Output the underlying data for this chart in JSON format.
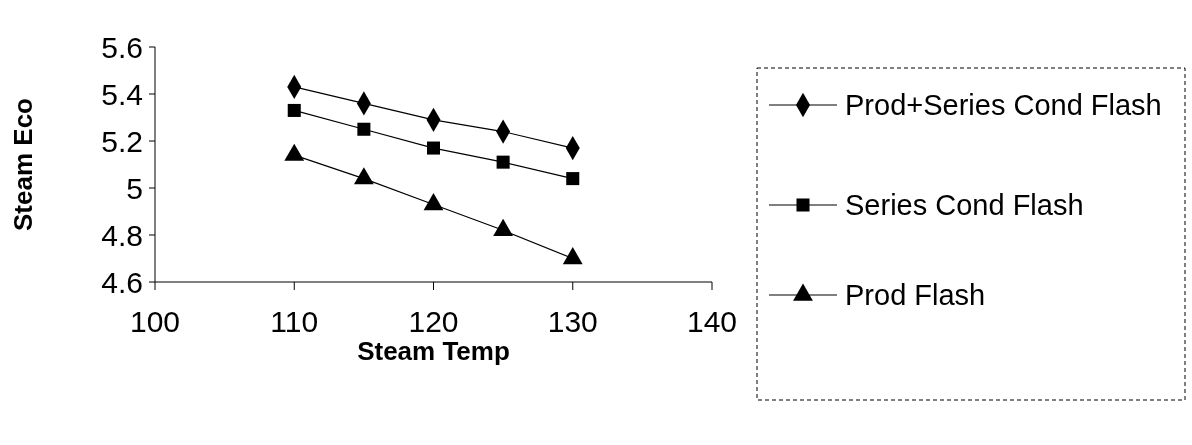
{
  "chart_data": {
    "type": "line",
    "xlabel": "Steam Temp",
    "ylabel": "Steam Eco",
    "x": [
      110,
      115,
      120,
      125,
      130
    ],
    "series": [
      {
        "name": "Prod+Series Cond Flash",
        "color": "#000000",
        "marker": "diamond",
        "values": [
          5.43,
          5.36,
          5.29,
          5.24,
          5.17
        ]
      },
      {
        "name": "Series Cond Flash",
        "color": "#000000",
        "marker": "square",
        "values": [
          5.33,
          5.25,
          5.17,
          5.11,
          5.04
        ]
      },
      {
        "name": "Prod Flash",
        "color": "#000000",
        "marker": "triangle",
        "values": [
          5.14,
          5.04,
          4.93,
          4.82,
          4.7
        ]
      }
    ],
    "xlim": [
      100,
      140
    ],
    "xticks": [
      100,
      110,
      120,
      130,
      140
    ],
    "ylim": [
      4.6,
      5.6
    ],
    "yticks": [
      4.6,
      4.8,
      5,
      5.2,
      5.4,
      5.6
    ],
    "grid": false,
    "legend": "right",
    "line_style": "solid"
  }
}
